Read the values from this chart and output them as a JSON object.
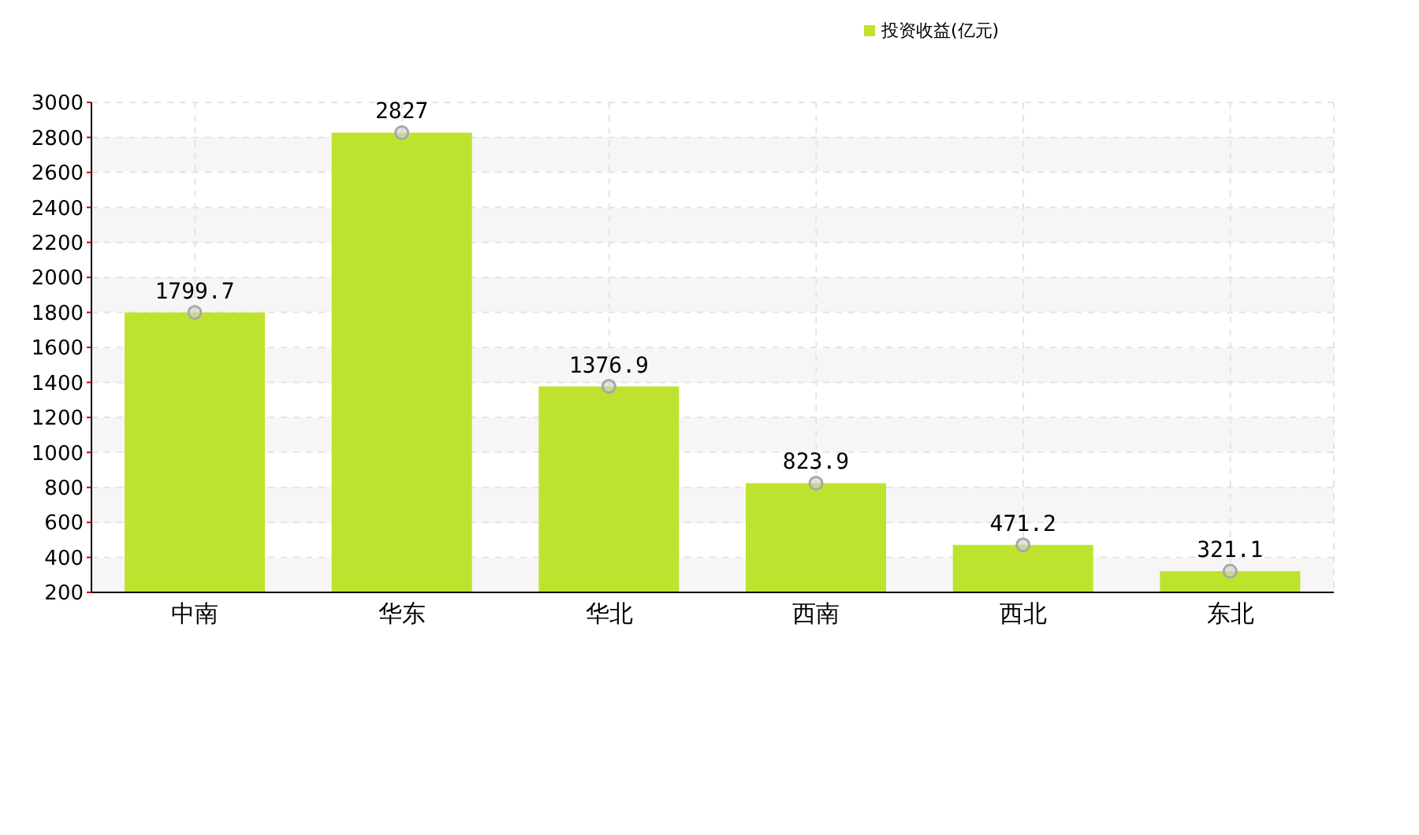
{
  "chart_data": {
    "type": "bar",
    "categories": [
      "中南",
      "华东",
      "华北",
      "西南",
      "西北",
      "东北"
    ],
    "series": [
      {
        "name": "投资收益(亿元)",
        "color": "#bee32e",
        "values": [
          1799.7,
          2827,
          1376.9,
          823.9,
          471.2,
          321.1
        ]
      }
    ],
    "ylim": [
      200,
      3000
    ],
    "yticks": [
      200,
      400,
      600,
      800,
      1000,
      1200,
      1400,
      1600,
      1800,
      2000,
      2200,
      2400,
      2600,
      2800,
      3000
    ],
    "grid": true,
    "legend": "top right",
    "data_labels": true,
    "marker": "circle"
  }
}
